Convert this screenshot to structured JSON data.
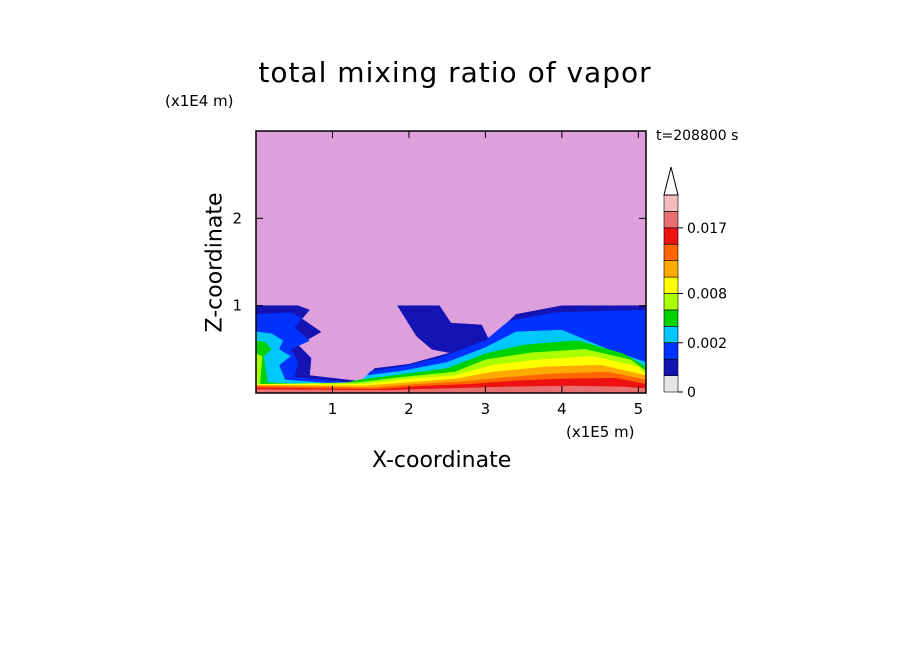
{
  "chart_data": {
    "type": "heatmap",
    "title": "total mixing ratio of vapor",
    "xlabel": "X-coordinate",
    "ylabel": "Z-coordinate",
    "x_unit": "(x1E5 m)",
    "y_unit": "(x1E4 m)",
    "annotation": "t=208800 s",
    "xlim": [
      0,
      5.1
    ],
    "ylim": [
      0,
      3.0
    ],
    "x_ticks": [
      1,
      2,
      3,
      4,
      5
    ],
    "y_ticks": [
      1,
      2
    ],
    "grid": false,
    "colorbar": {
      "placement": "right",
      "tick_labels": [
        "0",
        "0.002",
        "0.008",
        "0.017"
      ],
      "tick_values": [
        0,
        0.002,
        0.008,
        0.017
      ],
      "levels": [
        0,
        0.0005,
        0.001,
        0.002,
        0.004,
        0.006,
        0.008,
        0.01,
        0.012,
        0.014,
        0.017,
        0.02
      ],
      "colors": [
        "#e6e6e6",
        "#1414b4",
        "#0032ff",
        "#00c8ff",
        "#00d200",
        "#aaff00",
        "#ffff00",
        "#ffaa00",
        "#ff6600",
        "#ee1111",
        "#e87070",
        "#f4bcbc"
      ],
      "extend_max": true
    },
    "background_color": "#dda0dd",
    "contours": [
      {
        "level_index": 1,
        "color": "#1414b4",
        "x": [
          0,
          0.55,
          0.7,
          0.6,
          0.85,
          0.55,
          0.72,
          0.7,
          1.3,
          1.4,
          1.55,
          2.0,
          2.5,
          3.1,
          3.4,
          4.0,
          5.1,
          5.1,
          0
        ],
        "z": [
          1.0,
          1.0,
          0.95,
          0.85,
          0.7,
          0.55,
          0.4,
          0.2,
          0.14,
          0.12,
          0.28,
          0.33,
          0.45,
          0.65,
          0.9,
          1.0,
          1.0,
          0,
          0
        ]
      },
      {
        "level_index": 1,
        "color": "#1414b4",
        "x": [
          1.85,
          2.4,
          2.55,
          2.95,
          3.05,
          2.9,
          2.6,
          2.3,
          2.1
        ],
        "z": [
          1.0,
          1.0,
          0.8,
          0.78,
          0.6,
          0.5,
          0.45,
          0.5,
          0.65
        ]
      },
      {
        "level_index": 2,
        "color": "#0032ff",
        "x": [
          0,
          0.45,
          0.6,
          0.5,
          0.7,
          0.45,
          0.55,
          0.5,
          1.2,
          1.35,
          1.5,
          1.9,
          2.4,
          3.0,
          3.3,
          3.9,
          5.1,
          5.1,
          0
        ],
        "z": [
          0.9,
          0.92,
          0.85,
          0.75,
          0.6,
          0.5,
          0.35,
          0.18,
          0.12,
          0.1,
          0.25,
          0.3,
          0.4,
          0.6,
          0.82,
          0.92,
          0.95,
          0,
          0
        ]
      },
      {
        "level_index": 3,
        "color": "#00c8ff",
        "x": [
          0,
          0.2,
          0.35,
          0.3,
          0.45,
          0.3,
          0.38,
          1.1,
          1.3,
          1.45,
          1.9,
          2.5,
          3.0,
          3.4,
          4.0,
          4.6,
          5.1,
          5.1,
          0
        ],
        "z": [
          0.7,
          0.68,
          0.6,
          0.5,
          0.42,
          0.32,
          0.15,
          0.1,
          0.08,
          0.2,
          0.25,
          0.35,
          0.52,
          0.7,
          0.72,
          0.5,
          0.35,
          0,
          0
        ]
      },
      {
        "level_index": 4,
        "color": "#00d200",
        "x": [
          0,
          0.12,
          0.2,
          0.1,
          0.15,
          1.0,
          1.35,
          1.8,
          2.5,
          3.0,
          3.5,
          4.2,
          4.8,
          5.1,
          5.1,
          0
        ],
        "z": [
          0.6,
          0.58,
          0.5,
          0.42,
          0.12,
          0.08,
          0.15,
          0.2,
          0.28,
          0.45,
          0.55,
          0.6,
          0.45,
          0.3,
          0,
          0
        ]
      },
      {
        "level_index": 5,
        "color": "#aaff00",
        "x": [
          0,
          0.08,
          0.05,
          1.35,
          1.9,
          2.6,
          3.0,
          3.6,
          4.3,
          4.9,
          5.1,
          5.1,
          0
        ],
        "z": [
          0.45,
          0.42,
          0.1,
          0.12,
          0.18,
          0.24,
          0.38,
          0.46,
          0.5,
          0.38,
          0.25,
          0,
          0
        ]
      },
      {
        "level_index": 6,
        "color": "#ffff00",
        "x": [
          0,
          1.4,
          2.0,
          2.6,
          3.1,
          3.7,
          4.4,
          5.0,
          5.1,
          5.1,
          0
        ],
        "z": [
          0.1,
          0.1,
          0.16,
          0.2,
          0.32,
          0.38,
          0.42,
          0.3,
          0.2,
          0,
          0
        ]
      },
      {
        "level_index": 7,
        "color": "#ffaa00",
        "x": [
          0,
          1.4,
          2.0,
          2.6,
          3.1,
          3.8,
          4.5,
          5.1,
          5.1,
          0
        ],
        "z": [
          0.09,
          0.08,
          0.12,
          0.16,
          0.24,
          0.3,
          0.32,
          0.2,
          0,
          0
        ]
      },
      {
        "level_index": 8,
        "color": "#ff6600",
        "x": [
          0,
          1.5,
          2.1,
          2.7,
          3.3,
          3.9,
          4.6,
          5.1,
          5.1,
          0
        ],
        "z": [
          0.08,
          0.06,
          0.1,
          0.13,
          0.18,
          0.22,
          0.24,
          0.15,
          0,
          0
        ]
      },
      {
        "level_index": 9,
        "color": "#ee1111",
        "x": [
          0,
          1.6,
          2.2,
          2.8,
          3.4,
          4.0,
          4.7,
          5.1,
          5.1,
          0
        ],
        "z": [
          0.06,
          0.04,
          0.08,
          0.1,
          0.14,
          0.16,
          0.17,
          0.1,
          0,
          0
        ]
      },
      {
        "level_index": 10,
        "color": "#e87070",
        "x": [
          0,
          1.7,
          2.5,
          3.3,
          4.1,
          4.8,
          5.1,
          5.1,
          0
        ],
        "z": [
          0.04,
          0.03,
          0.05,
          0.07,
          0.08,
          0.07,
          0.05,
          0,
          0
        ]
      }
    ]
  }
}
